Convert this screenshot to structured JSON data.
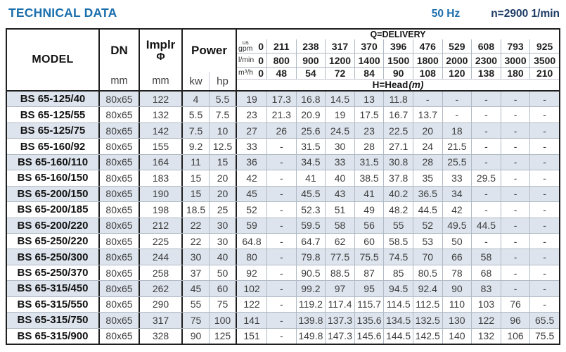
{
  "header": {
    "title": "TECHNICAL DATA",
    "frequency": "50 Hz",
    "speed": "n=2900 1/min"
  },
  "colors": {
    "title_blue": "#1b6fad",
    "speed_navy": "#1e3c64",
    "row_shade": "#dde4ed",
    "border_dark": "#1f1f1f",
    "grid_light": "#b0bac4"
  },
  "table": {
    "model_header": "MODEL",
    "dn_header": "DN",
    "dn_unit": "mm",
    "impeller_header": "Implr",
    "impeller_symbol": "Φ",
    "impeller_unit": "mm",
    "power_header": "Power",
    "power_kw_unit": "kw",
    "power_hp_unit": "hp",
    "delivery_header": "Q=DELIVERY",
    "head_header": "H=Head",
    "head_unit": "(m)",
    "unit_rows": [
      {
        "label_small": "us",
        "label": "gpm",
        "values": [
          "0",
          "211",
          "238",
          "317",
          "370",
          "396",
          "476",
          "529",
          "608",
          "793",
          "925"
        ]
      },
      {
        "label": "l/min",
        "values": [
          "0",
          "800",
          "900",
          "1200",
          "1400",
          "1500",
          "1800",
          "2000",
          "2300",
          "3000",
          "3500"
        ]
      },
      {
        "label": "m³/h",
        "values": [
          "0",
          "48",
          "54",
          "72",
          "84",
          "90",
          "108",
          "120",
          "138",
          "180",
          "210"
        ]
      }
    ],
    "rows": [
      {
        "model": "BS 65-125/40",
        "dn": "80x65",
        "impeller": "122",
        "kw": "4",
        "hp": "5.5",
        "head": [
          "19",
          "17.3",
          "16.8",
          "14.5",
          "13",
          "11.8",
          "-",
          "-",
          "-",
          "-",
          "-"
        ]
      },
      {
        "model": "BS 65-125/55",
        "dn": "80x65",
        "impeller": "132",
        "kw": "5.5",
        "hp": "7.5",
        "head": [
          "23",
          "21.3",
          "20.9",
          "19",
          "17.5",
          "16.7",
          "13.7",
          "-",
          "-",
          "-",
          "-"
        ]
      },
      {
        "model": "BS 65-125/75",
        "dn": "80x65",
        "impeller": "142",
        "kw": "7.5",
        "hp": "10",
        "head": [
          "27",
          "26",
          "25.6",
          "24.5",
          "23",
          "22.5",
          "20",
          "18",
          "-",
          "-",
          "-"
        ]
      },
      {
        "model": "BS 65-160/92",
        "dn": "80x65",
        "impeller": "155",
        "kw": "9.2",
        "hp": "12.5",
        "head": [
          "33",
          "-",
          "31.5",
          "30",
          "28",
          "27.1",
          "24",
          "21.5",
          "-",
          "-",
          "-"
        ]
      },
      {
        "model": "BS 65-160/110",
        "dn": "80x65",
        "impeller": "164",
        "kw": "11",
        "hp": "15",
        "head": [
          "36",
          "-",
          "34.5",
          "33",
          "31.5",
          "30.8",
          "28",
          "25.5",
          "-",
          "-",
          "-"
        ]
      },
      {
        "model": "BS 65-160/150",
        "dn": "80x65",
        "impeller": "183",
        "kw": "15",
        "hp": "20",
        "head": [
          "42",
          "-",
          "41",
          "40",
          "38.5",
          "37.8",
          "35",
          "33",
          "29.5",
          "-",
          "-"
        ]
      },
      {
        "model": "BS 65-200/150",
        "dn": "80x65",
        "impeller": "190",
        "kw": "15",
        "hp": "20",
        "head": [
          "45",
          "-",
          "45.5",
          "43",
          "41",
          "40.2",
          "36.5",
          "34",
          "-",
          "-",
          "-"
        ]
      },
      {
        "model": "BS 65-200/185",
        "dn": "80x65",
        "impeller": "198",
        "kw": "18.5",
        "hp": "25",
        "head": [
          "52",
          "-",
          "52.3",
          "51",
          "49",
          "48.2",
          "44.5",
          "42",
          "-",
          "-",
          "-"
        ]
      },
      {
        "model": "BS 65-200/220",
        "dn": "80x65",
        "impeller": "212",
        "kw": "22",
        "hp": "30",
        "head": [
          "59",
          "-",
          "59.5",
          "58",
          "56",
          "55",
          "52",
          "49.5",
          "44.5",
          "-",
          "-"
        ]
      },
      {
        "model": "BS 65-250/220",
        "dn": "80x65",
        "impeller": "225",
        "kw": "22",
        "hp": "30",
        "head": [
          "64.8",
          "-",
          "64.7",
          "62",
          "60",
          "58.5",
          "53",
          "50",
          "-",
          "-",
          "-"
        ]
      },
      {
        "model": "BS 65-250/300",
        "dn": "80x65",
        "impeller": "244",
        "kw": "30",
        "hp": "40",
        "head": [
          "80",
          "-",
          "79.8",
          "77.5",
          "75.5",
          "74.5",
          "70",
          "66",
          "58",
          "-",
          "-"
        ]
      },
      {
        "model": "BS 65-250/370",
        "dn": "80x65",
        "impeller": "258",
        "kw": "37",
        "hp": "50",
        "head": [
          "92",
          "-",
          "90.5",
          "88.5",
          "87",
          "85",
          "80.5",
          "78",
          "68",
          "-",
          "-"
        ]
      },
      {
        "model": "BS 65-315/450",
        "dn": "80x65",
        "impeller": "262",
        "kw": "45",
        "hp": "60",
        "head": [
          "102",
          "-",
          "99.2",
          "97",
          "95",
          "94.5",
          "92.4",
          "90",
          "83",
          "-",
          "-"
        ]
      },
      {
        "model": "BS 65-315/550",
        "dn": "80x65",
        "impeller": "290",
        "kw": "55",
        "hp": "75",
        "head": [
          "122",
          "-",
          "119.2",
          "117.4",
          "115.7",
          "114.5",
          "112.5",
          "110",
          "103",
          "76",
          "-"
        ]
      },
      {
        "model": "BS 65-315/750",
        "dn": "80x65",
        "impeller": "317",
        "kw": "75",
        "hp": "100",
        "head": [
          "141",
          "-",
          "139.8",
          "137.3",
          "135.6",
          "134.5",
          "132.5",
          "130",
          "122",
          "96",
          "65.5"
        ]
      },
      {
        "model": "BS 65-315/900",
        "dn": "80x65",
        "impeller": "328",
        "kw": "90",
        "hp": "125",
        "head": [
          "151",
          "-",
          "149.8",
          "147.3",
          "145.6",
          "144.5",
          "142.5",
          "140",
          "132",
          "106",
          "75.5"
        ]
      }
    ]
  }
}
